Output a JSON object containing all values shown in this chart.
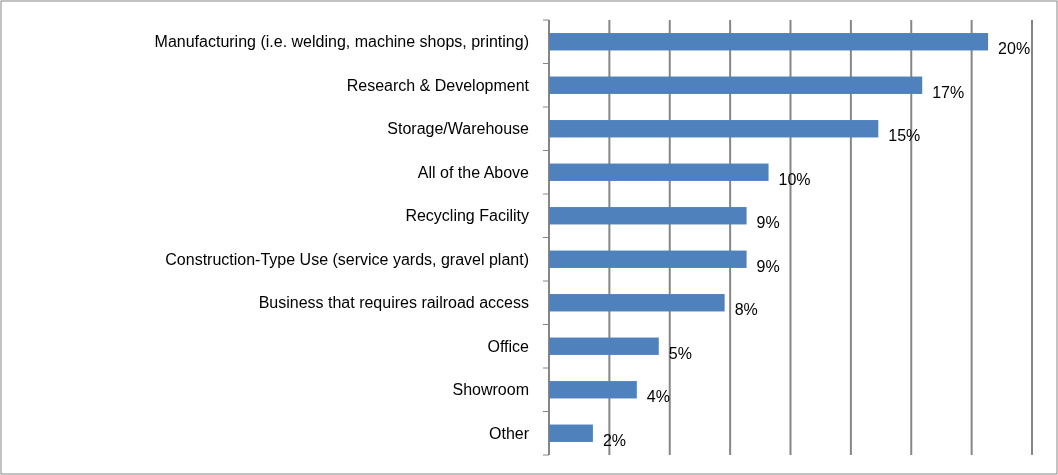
{
  "chart_data": {
    "type": "bar",
    "orientation": "horizontal",
    "categories": [
      "Manufacturing (i.e. welding, machine shops, printing)",
      "Research & Development",
      "Storage/Warehouse",
      "All of the Above",
      "Recycling Facility",
      "Construction-Type Use (service yards, gravel plant)",
      "Business that requires railroad access",
      "Office",
      "Showroom",
      "Other"
    ],
    "values": [
      20,
      17,
      15,
      10,
      9,
      9,
      8,
      5,
      4,
      2
    ],
    "value_labels": [
      "20%",
      "17%",
      "15%",
      "10%",
      "9%",
      "9%",
      "8%",
      "5%",
      "4%",
      "2%"
    ],
    "color": "#4f81bd",
    "xlim": [
      0,
      22
    ],
    "xticks": [
      {
        "value": 0,
        "label": null
      },
      {
        "value": 2.75,
        "label": null
      },
      {
        "value": 5.5,
        "label": null
      },
      {
        "value": 8.25,
        "label": null
      },
      {
        "value": 11,
        "label": null
      },
      {
        "value": 13.75,
        "label": null
      },
      {
        "value": 16.5,
        "label": null
      },
      {
        "value": 19.25,
        "label": null
      },
      {
        "value": 22,
        "label": null
      }
    ],
    "grid": "x",
    "tick_labels": "y"
  }
}
